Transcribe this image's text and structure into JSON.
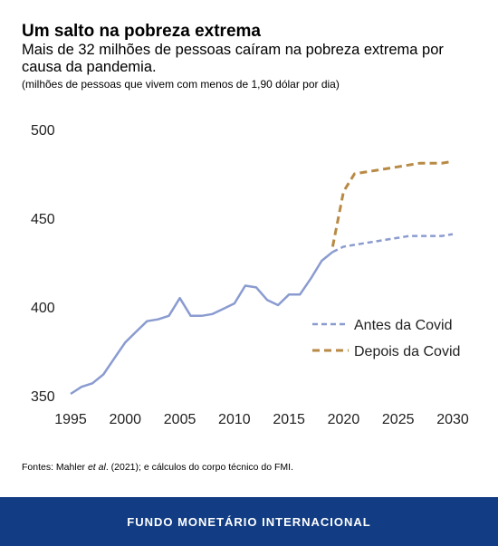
{
  "header": {
    "title": "Um salto na pobreza extrema",
    "subtitle": "Mais de 32 milhões de pessoas caíram na pobreza extrema por causa da pandemia.",
    "unit_note": "(milhões de pessoas que vivem com menos de 1,90 dólar por dia)"
  },
  "source": {
    "prefix": "Fontes: Mahler ",
    "italic": "et al",
    "suffix": ". (2021); e cálculos do corpo técnico do FMI."
  },
  "footer": {
    "label": "FUNDO MONETÁRIO INTERNACIONAL"
  },
  "chart_data": {
    "type": "line",
    "title": "Um salto na pobreza extrema",
    "ylabel": "(milhões de pessoas que vivem com menos de 1,90 dólar por dia)",
    "xlim": [
      1995,
      2030
    ],
    "ylim": [
      350,
      500
    ],
    "x_ticks": [
      1995,
      2000,
      2005,
      2010,
      2015,
      2020,
      2025,
      2030
    ],
    "y_ticks": [
      350,
      400,
      450,
      500
    ],
    "grid": false,
    "legend_position": "right",
    "series": [
      {
        "name": "Antes da Covid",
        "color": "#8a9bd0",
        "style": "solid-then-dashed",
        "dash_from": 2019,
        "x": [
          1995,
          1996,
          1997,
          1998,
          1999,
          2000,
          2001,
          2002,
          2003,
          2004,
          2005,
          2006,
          2007,
          2008,
          2009,
          2010,
          2011,
          2012,
          2013,
          2014,
          2015,
          2016,
          2017,
          2018,
          2019,
          2020,
          2021,
          2022,
          2023,
          2024,
          2025,
          2026,
          2027,
          2028,
          2029,
          2030
        ],
        "values": [
          351,
          355,
          357,
          362,
          371,
          380,
          386,
          392,
          393,
          395,
          405,
          395,
          395,
          396,
          399,
          402,
          412,
          411,
          404,
          401,
          407,
          407,
          416,
          426,
          431,
          434,
          435,
          436,
          437,
          438,
          439,
          440,
          440,
          440,
          440,
          441
        ]
      },
      {
        "name": "Depois da Covid",
        "color": "#b88a45",
        "style": "dashed",
        "x": [
          2019,
          2020,
          2021,
          2022,
          2023,
          2024,
          2025,
          2026,
          2027,
          2028,
          2029,
          2030
        ],
        "values": [
          434,
          465,
          475,
          476,
          477,
          478,
          479,
          480,
          481,
          481,
          481,
          482
        ]
      }
    ]
  }
}
